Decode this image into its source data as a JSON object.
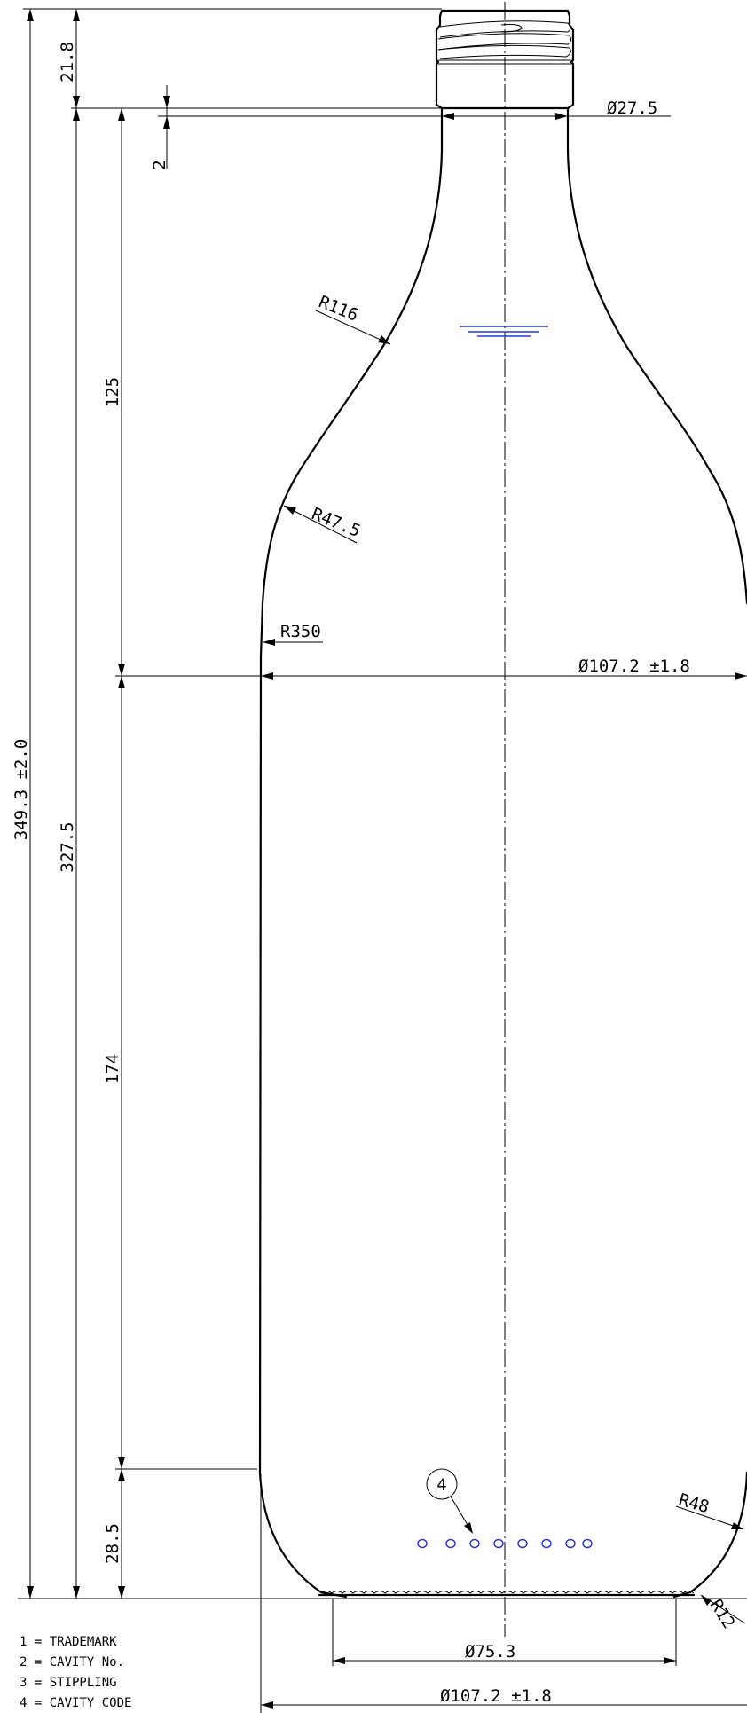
{
  "dimensions": {
    "overall_height": "349.3 ±2.0",
    "body_height": "327.5",
    "finish_height": "21.8",
    "neck_offset": "2",
    "shoulder_height": "125",
    "straight_height": "174",
    "heel_height": "28.5",
    "neck_diameter": "27.5",
    "body_diameter": "107.2 ±1.8",
    "base_diameter": "107.2 ±1.8",
    "push_up_diameter": "75.3",
    "diameter_symbol": "Ø"
  },
  "radii": {
    "neck": "R116",
    "shoulder": "R47.5",
    "body": "R350",
    "heel": "R48",
    "base": "R12"
  },
  "balloon": "4",
  "legend": [
    "1 = TRADEMARK",
    "2 = CAVITY No.",
    "3 = STIPPLING",
    "4 = CAVITY CODE"
  ]
}
